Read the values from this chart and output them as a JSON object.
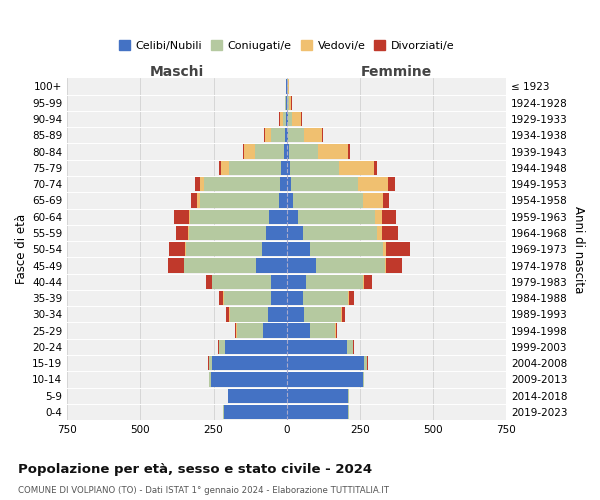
{
  "age_groups": [
    "0-4",
    "5-9",
    "10-14",
    "15-19",
    "20-24",
    "25-29",
    "30-34",
    "35-39",
    "40-44",
    "45-49",
    "50-54",
    "55-59",
    "60-64",
    "65-69",
    "70-74",
    "75-79",
    "80-84",
    "85-89",
    "90-94",
    "95-99",
    "100+"
  ],
  "birth_years": [
    "2019-2023",
    "2014-2018",
    "2009-2013",
    "2004-2008",
    "1999-2003",
    "1994-1998",
    "1989-1993",
    "1984-1988",
    "1979-1983",
    "1974-1978",
    "1969-1973",
    "1964-1968",
    "1959-1963",
    "1954-1958",
    "1949-1953",
    "1944-1948",
    "1939-1943",
    "1934-1938",
    "1929-1933",
    "1924-1928",
    "≤ 1923"
  ],
  "males": {
    "celibi": [
      215,
      200,
      260,
      255,
      210,
      80,
      65,
      55,
      55,
      105,
      85,
      70,
      60,
      28,
      22,
      18,
      10,
      5,
      4,
      2,
      2
    ],
    "coniugati": [
      2,
      2,
      5,
      10,
      20,
      90,
      130,
      160,
      200,
      245,
      260,
      265,
      270,
      270,
      260,
      180,
      100,
      50,
      10,
      3,
      2
    ],
    "vedovi": [
      0,
      0,
      0,
      2,
      2,
      2,
      2,
      2,
      2,
      2,
      2,
      3,
      5,
      10,
      15,
      25,
      35,
      20,
      10,
      2,
      0
    ],
    "divorziati": [
      0,
      0,
      0,
      2,
      2,
      5,
      10,
      15,
      20,
      55,
      55,
      40,
      50,
      20,
      15,
      8,
      5,
      2,
      2,
      0,
      0
    ]
  },
  "females": {
    "nubili": [
      210,
      210,
      260,
      265,
      205,
      80,
      60,
      55,
      65,
      100,
      80,
      55,
      40,
      20,
      15,
      12,
      8,
      5,
      3,
      2,
      2
    ],
    "coniugate": [
      2,
      2,
      4,
      8,
      20,
      85,
      125,
      155,
      195,
      235,
      250,
      255,
      260,
      240,
      230,
      165,
      100,
      55,
      15,
      4,
      2
    ],
    "vedove": [
      0,
      0,
      0,
      2,
      2,
      2,
      3,
      3,
      5,
      5,
      10,
      15,
      25,
      70,
      100,
      120,
      100,
      60,
      30,
      10,
      3
    ],
    "divorziate": [
      0,
      0,
      0,
      2,
      2,
      5,
      10,
      18,
      25,
      55,
      80,
      55,
      50,
      20,
      25,
      12,
      8,
      5,
      3,
      2,
      0
    ]
  },
  "colors": {
    "celibi_nubili": "#4472c4",
    "coniugati": "#b5c9a0",
    "vedovi": "#f0c070",
    "divorziati": "#c0392b"
  },
  "title": "Popolazione per età, sesso e stato civile - 2024",
  "subtitle": "COMUNE DI VOLPIANO (TO) - Dati ISTAT 1° gennaio 2024 - Elaborazione TUTTITALIA.IT",
  "xlabel_left": "Maschi",
  "xlabel_right": "Femmine",
  "ylabel_left": "Fasce di età",
  "ylabel_right": "Anni di nascita",
  "xlim": 750,
  "xticks": [
    -750,
    -500,
    -250,
    0,
    250,
    500,
    750
  ],
  "legend_labels": [
    "Celibi/Nubili",
    "Coniugati/e",
    "Vedovi/e",
    "Divorziati/e"
  ],
  "background_color": "#ffffff",
  "plot_bg_color": "#f0f0f0"
}
